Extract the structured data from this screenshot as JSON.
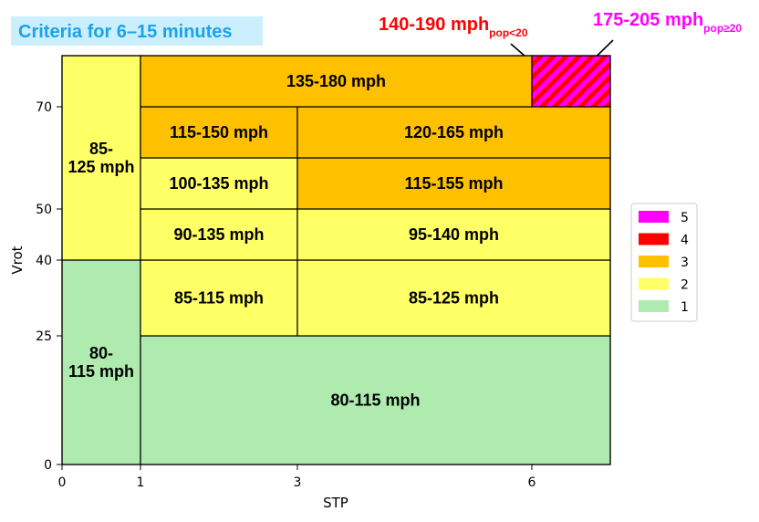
{
  "chart_data": {
    "type": "heatmap",
    "title": "Criteria for 6–15 minutes",
    "xlabel": "STP",
    "ylabel": "Vrot",
    "x_ticks": [
      "0",
      "1",
      "3",
      "6"
    ],
    "y_ticks": [
      "0",
      "25",
      "40",
      "50",
      "70"
    ],
    "colors": {
      "1": "#afeaaf",
      "2": "#ffff66",
      "3": "#ffc000",
      "4": "#ff0000",
      "5": "#ff00ff"
    },
    "legend": [
      {
        "label": "5",
        "color": "#ff00ff"
      },
      {
        "label": "4",
        "color": "#ff0000"
      },
      {
        "label": "3",
        "color": "#ffc000"
      },
      {
        "label": "2",
        "color": "#ffff66"
      },
      {
        "label": "1",
        "color": "#afeaaf"
      }
    ],
    "cells": [
      {
        "x0": 0,
        "x1": 1,
        "y0": 0,
        "y1": 40,
        "level": 1,
        "lines": [
          "80-",
          "115 mph"
        ]
      },
      {
        "x0": 0,
        "x1": 1,
        "y0": 40,
        "y1": 80,
        "level": 2,
        "lines": [
          "85-",
          "125 mph"
        ]
      },
      {
        "x0": 1,
        "x1": 7,
        "y0": 0,
        "y1": 25,
        "level": 1,
        "lines": [
          "80-115 mph"
        ]
      },
      {
        "x0": 1,
        "x1": 3,
        "y0": 25,
        "y1": 40,
        "level": 2,
        "lines": [
          "85-115 mph"
        ]
      },
      {
        "x0": 3,
        "x1": 7,
        "y0": 25,
        "y1": 40,
        "level": 2,
        "lines": [
          "85-125 mph"
        ]
      },
      {
        "x0": 1,
        "x1": 3,
        "y0": 40,
        "y1": 50,
        "level": 2,
        "lines": [
          "90-135 mph"
        ]
      },
      {
        "x0": 3,
        "x1": 7,
        "y0": 40,
        "y1": 50,
        "level": 2,
        "lines": [
          "95-140 mph"
        ]
      },
      {
        "x0": 1,
        "x1": 3,
        "y0": 50,
        "y1": 60,
        "level": 2,
        "lines": [
          "100-135 mph"
        ]
      },
      {
        "x0": 3,
        "x1": 7,
        "y0": 50,
        "y1": 60,
        "level": 3,
        "lines": [
          "115-155 mph"
        ]
      },
      {
        "x0": 1,
        "x1": 3,
        "y0": 60,
        "y1": 70,
        "level": 3,
        "lines": [
          "115-150 mph"
        ]
      },
      {
        "x0": 3,
        "x1": 7,
        "y0": 60,
        "y1": 70,
        "level": 3,
        "lines": [
          "120-165 mph"
        ]
      },
      {
        "x0": 1,
        "x1": 6,
        "y0": 70,
        "y1": 80,
        "level": 3,
        "lines": [
          "135-180 mph"
        ]
      },
      {
        "x0": 6,
        "x1": 7,
        "y0": 70,
        "y1": 80,
        "level": "4/5",
        "hatched": true,
        "lines": []
      }
    ],
    "annotations": [
      {
        "text": "140-190 mph",
        "sub": "pop<20",
        "color": "#ff0000",
        "points_to": "hatched-cell"
      },
      {
        "text": "175-205 mph",
        "sub": "pop≥20",
        "color": "#ff00ff",
        "points_to": "hatched-cell"
      }
    ]
  }
}
